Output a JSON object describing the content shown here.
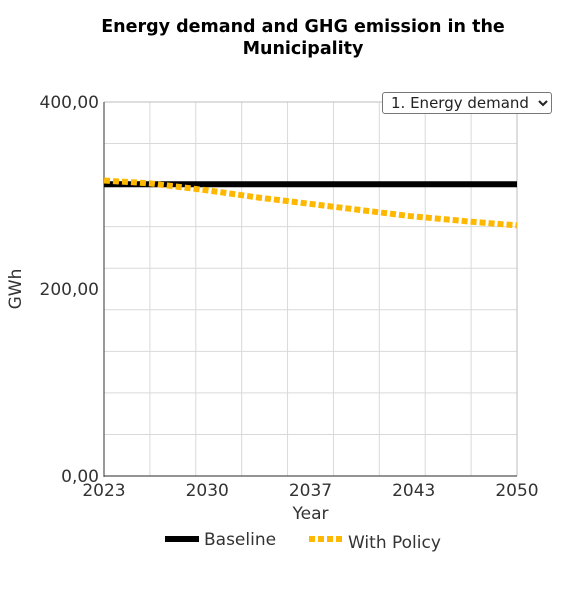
{
  "chart_data": {
    "type": "line",
    "title_lines": [
      "Energy demand and GHG emission in the",
      "Municipality"
    ],
    "xlabel": "Year",
    "ylabel": "GWh",
    "x_ticks": [
      "2023",
      "2030",
      "2037",
      "2043",
      "2050"
    ],
    "xlim": [
      2023,
      2050
    ],
    "y_ticks": [
      "0,00",
      "200,00",
      "400,00"
    ],
    "ylim": [
      0,
      400
    ],
    "grid": true,
    "legend_position": "bottom",
    "series": [
      {
        "name": "Baseline",
        "color": "#000000",
        "style": "solid",
        "x": [
          2023,
          2030,
          2037,
          2043,
          2050
        ],
        "values": [
          312,
          312,
          312,
          312,
          312
        ]
      },
      {
        "name": "With Policy",
        "color": "#FFB800",
        "style": "dotted",
        "x": [
          2023,
          2026,
          2030,
          2033,
          2037,
          2040,
          2043,
          2047,
          2050
        ],
        "values": [
          316,
          313,
          305,
          298,
          290,
          284,
          278,
          272,
          268
        ]
      }
    ]
  },
  "selector": {
    "selected": "1. Energy demand"
  }
}
